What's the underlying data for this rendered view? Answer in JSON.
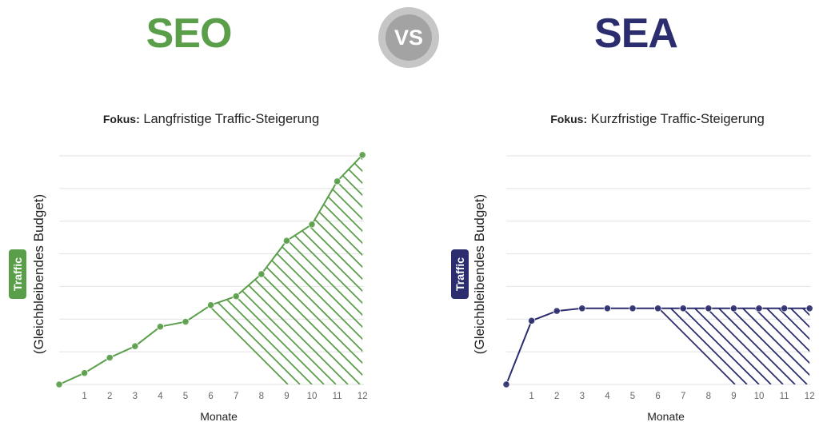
{
  "header": {
    "left_title": "SEO",
    "vs_label": "VS",
    "right_title": "SEA"
  },
  "colors": {
    "seo": "#5a9e4a",
    "sea": "#2b2d6e",
    "vs_outer": "#c6c6c6",
    "vs_inner": "#a3a3a3",
    "grid": "#e2e2e2"
  },
  "chart_data": [
    {
      "type": "area",
      "title_bold": "Fokus:",
      "title": "Langfristige Traffic-Steigerung",
      "xlabel": "Monate",
      "ylabel": "(Gleichbleibendes Budget)",
      "ylabel_badge": "Traffic",
      "x": [
        0,
        1,
        2,
        3,
        4,
        5,
        6,
        7,
        8,
        9,
        10,
        11,
        12
      ],
      "x_tick_labels": [
        "",
        "1",
        "2",
        "3",
        "4",
        "5",
        "6",
        "7",
        "8",
        "9",
        "10",
        "11",
        "12"
      ],
      "y": [
        0,
        0.35,
        0.82,
        1.17,
        1.77,
        1.92,
        2.43,
        2.7,
        3.38,
        4.4,
        4.9,
        6.22,
        7.03
      ],
      "ylim": [
        0,
        7
      ],
      "grid": true,
      "fill": "hatched",
      "color": "#5a9e4a"
    },
    {
      "type": "area",
      "title_bold": "Fokus:",
      "title": "Kurzfristige Traffic-Steigerung",
      "xlabel": "Monate",
      "ylabel": "(Gleichbleibendes Budget)",
      "ylabel_badge": "Traffic",
      "x": [
        0,
        1,
        2,
        3,
        4,
        5,
        6,
        7,
        8,
        9,
        10,
        11,
        12
      ],
      "x_tick_labels": [
        "",
        "1",
        "2",
        "3",
        "4",
        "5",
        "6",
        "7",
        "8",
        "9",
        "10",
        "11",
        "12"
      ],
      "y": [
        0,
        1.95,
        2.25,
        2.33,
        2.33,
        2.33,
        2.33,
        2.33,
        2.33,
        2.33,
        2.33,
        2.33,
        2.33
      ],
      "ylim": [
        0,
        7
      ],
      "grid": true,
      "fill": "hatched",
      "color": "#2b2d6e"
    }
  ]
}
